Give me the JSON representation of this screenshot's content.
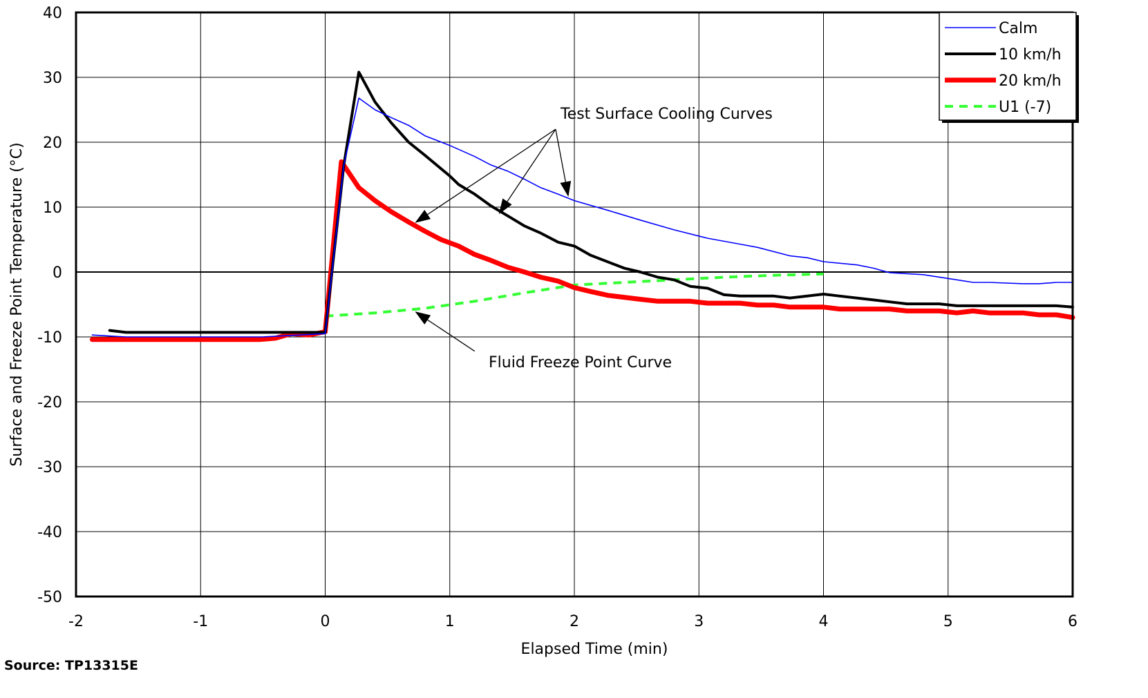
{
  "chart_data": {
    "type": "line",
    "xlabel": "Elapsed Time (min)",
    "ylabel": "Surface and Freeze Point Temperature (°C)",
    "xlim": [
      -2,
      6
    ],
    "ylim": [
      -50,
      40
    ],
    "x_ticks": [
      "-2",
      "-1",
      "0",
      "1",
      "2",
      "3",
      "4",
      "5",
      "6"
    ],
    "y_ticks": [
      "40",
      "30",
      "20",
      "10",
      "0",
      "-10",
      "-20",
      "-30",
      "-40",
      "-50"
    ],
    "grid": true,
    "legend_position": "top-right",
    "series": [
      {
        "name": "Calm",
        "color": "#0000ff",
        "style": "solid",
        "weight": "thin",
        "x": [
          -1.87,
          -1.6,
          -1.0,
          -0.5,
          0,
          0.15,
          0.27,
          0.4,
          0.53,
          0.67,
          0.8,
          1.0,
          1.2,
          1.33,
          1.47,
          1.6,
          1.73,
          1.87,
          2.0,
          2.27,
          2.53,
          2.8,
          3.07,
          3.33,
          3.47,
          3.73,
          3.87,
          4.0,
          4.27,
          4.4,
          4.53,
          4.8,
          5.07,
          5.2,
          5.33,
          5.6,
          5.73,
          5.87,
          6.0
        ],
        "y": [
          -9.7,
          -10.0,
          -10.0,
          -10.0,
          -9.5,
          16.5,
          26.8,
          25.0,
          23.8,
          22.6,
          21.0,
          19.5,
          17.8,
          16.5,
          15.5,
          14.3,
          13.0,
          12.0,
          11.0,
          9.5,
          8.0,
          6.5,
          5.2,
          4.3,
          3.8,
          2.5,
          2.2,
          1.6,
          1.1,
          0.6,
          -0.1,
          -0.4,
          -1.2,
          -1.6,
          -1.6,
          -1.8,
          -1.8,
          -1.6,
          -1.6
        ]
      },
      {
        "name": "10 km/h",
        "color": "#000000",
        "style": "solid",
        "weight": "medium",
        "x": [
          -1.73,
          -1.6,
          -1.0,
          -0.5,
          0,
          0.15,
          0.27,
          0.4,
          0.53,
          0.67,
          0.8,
          1.0,
          1.07,
          1.2,
          1.33,
          1.47,
          1.6,
          1.73,
          1.87,
          2.0,
          2.13,
          2.4,
          2.53,
          2.67,
          2.8,
          2.93,
          3.07,
          3.2,
          3.33,
          3.47,
          3.6,
          3.73,
          3.87,
          4.0,
          4.13,
          4.4,
          4.53,
          4.67,
          4.93,
          5.07,
          5.33,
          5.6,
          5.87,
          6.0
        ],
        "y": [
          -9.0,
          -9.3,
          -9.3,
          -9.3,
          -9.3,
          16.5,
          30.8,
          26.2,
          23.0,
          20.0,
          18.0,
          14.8,
          13.5,
          12.0,
          10.2,
          8.6,
          7.1,
          6.0,
          4.6,
          4.0,
          2.6,
          0.6,
          0.0,
          -0.8,
          -1.2,
          -2.2,
          -2.5,
          -3.5,
          -3.7,
          -3.7,
          -3.7,
          -4.0,
          -3.7,
          -3.4,
          -3.7,
          -4.3,
          -4.6,
          -4.9,
          -4.9,
          -5.2,
          -5.2,
          -5.2,
          -5.2,
          -5.4
        ]
      },
      {
        "name": "20 km/h",
        "color": "#ff0000",
        "style": "solid",
        "weight": "thick",
        "x": [
          -1.87,
          -1.6,
          -1.0,
          -0.53,
          -0.4,
          -0.27,
          -0.13,
          0,
          0.13,
          0.27,
          0.4,
          0.53,
          0.67,
          0.8,
          0.93,
          1.07,
          1.2,
          1.33,
          1.47,
          1.6,
          1.73,
          1.87,
          2.0,
          2.13,
          2.27,
          2.53,
          2.67,
          2.93,
          3.07,
          3.33,
          3.47,
          3.6,
          3.73,
          3.87,
          4.0,
          4.13,
          4.4,
          4.53,
          4.67,
          4.93,
          5.07,
          5.2,
          5.33,
          5.6,
          5.73,
          5.87,
          6.0
        ],
        "y": [
          -10.4,
          -10.4,
          -10.4,
          -10.4,
          -10.2,
          -9.5,
          -9.7,
          -9.2,
          17.0,
          13.0,
          11.0,
          9.3,
          7.7,
          6.3,
          5.0,
          4.0,
          2.7,
          1.8,
          0.7,
          0.0,
          -0.8,
          -1.4,
          -2.4,
          -3.0,
          -3.6,
          -4.2,
          -4.5,
          -4.5,
          -4.8,
          -4.8,
          -5.1,
          -5.1,
          -5.4,
          -5.4,
          -5.4,
          -5.7,
          -5.7,
          -5.7,
          -6.0,
          -6.0,
          -6.3,
          -6.0,
          -6.3,
          -6.3,
          -6.6,
          -6.6,
          -7.0
        ]
      },
      {
        "name": "U1 (-7)",
        "color": "#33ff33",
        "style": "dashed",
        "weight": "medium",
        "x": [
          0,
          0.4,
          0.8,
          1.2,
          1.6,
          2.0,
          2.4,
          2.8,
          3.2,
          3.6,
          4.0
        ],
        "y": [
          -6.8,
          -6.3,
          -5.6,
          -4.5,
          -3.2,
          -2.0,
          -1.6,
          -1.2,
          -0.8,
          -0.5,
          -0.3
        ]
      }
    ],
    "annotations": [
      {
        "text": "Test Surface Cooling Curves",
        "anchor": [
          1.85,
          22.0
        ],
        "arrows": [
          [
            0.73,
            7.7
          ],
          [
            1.4,
            9.1
          ],
          [
            1.95,
            11.8
          ]
        ]
      },
      {
        "text": "Fluid Freeze Point Curve",
        "anchor": [
          1.2,
          -12.2
        ],
        "arrows": [
          [
            0.73,
            -6.2
          ]
        ]
      }
    ]
  },
  "source": "Source: TP13315E"
}
